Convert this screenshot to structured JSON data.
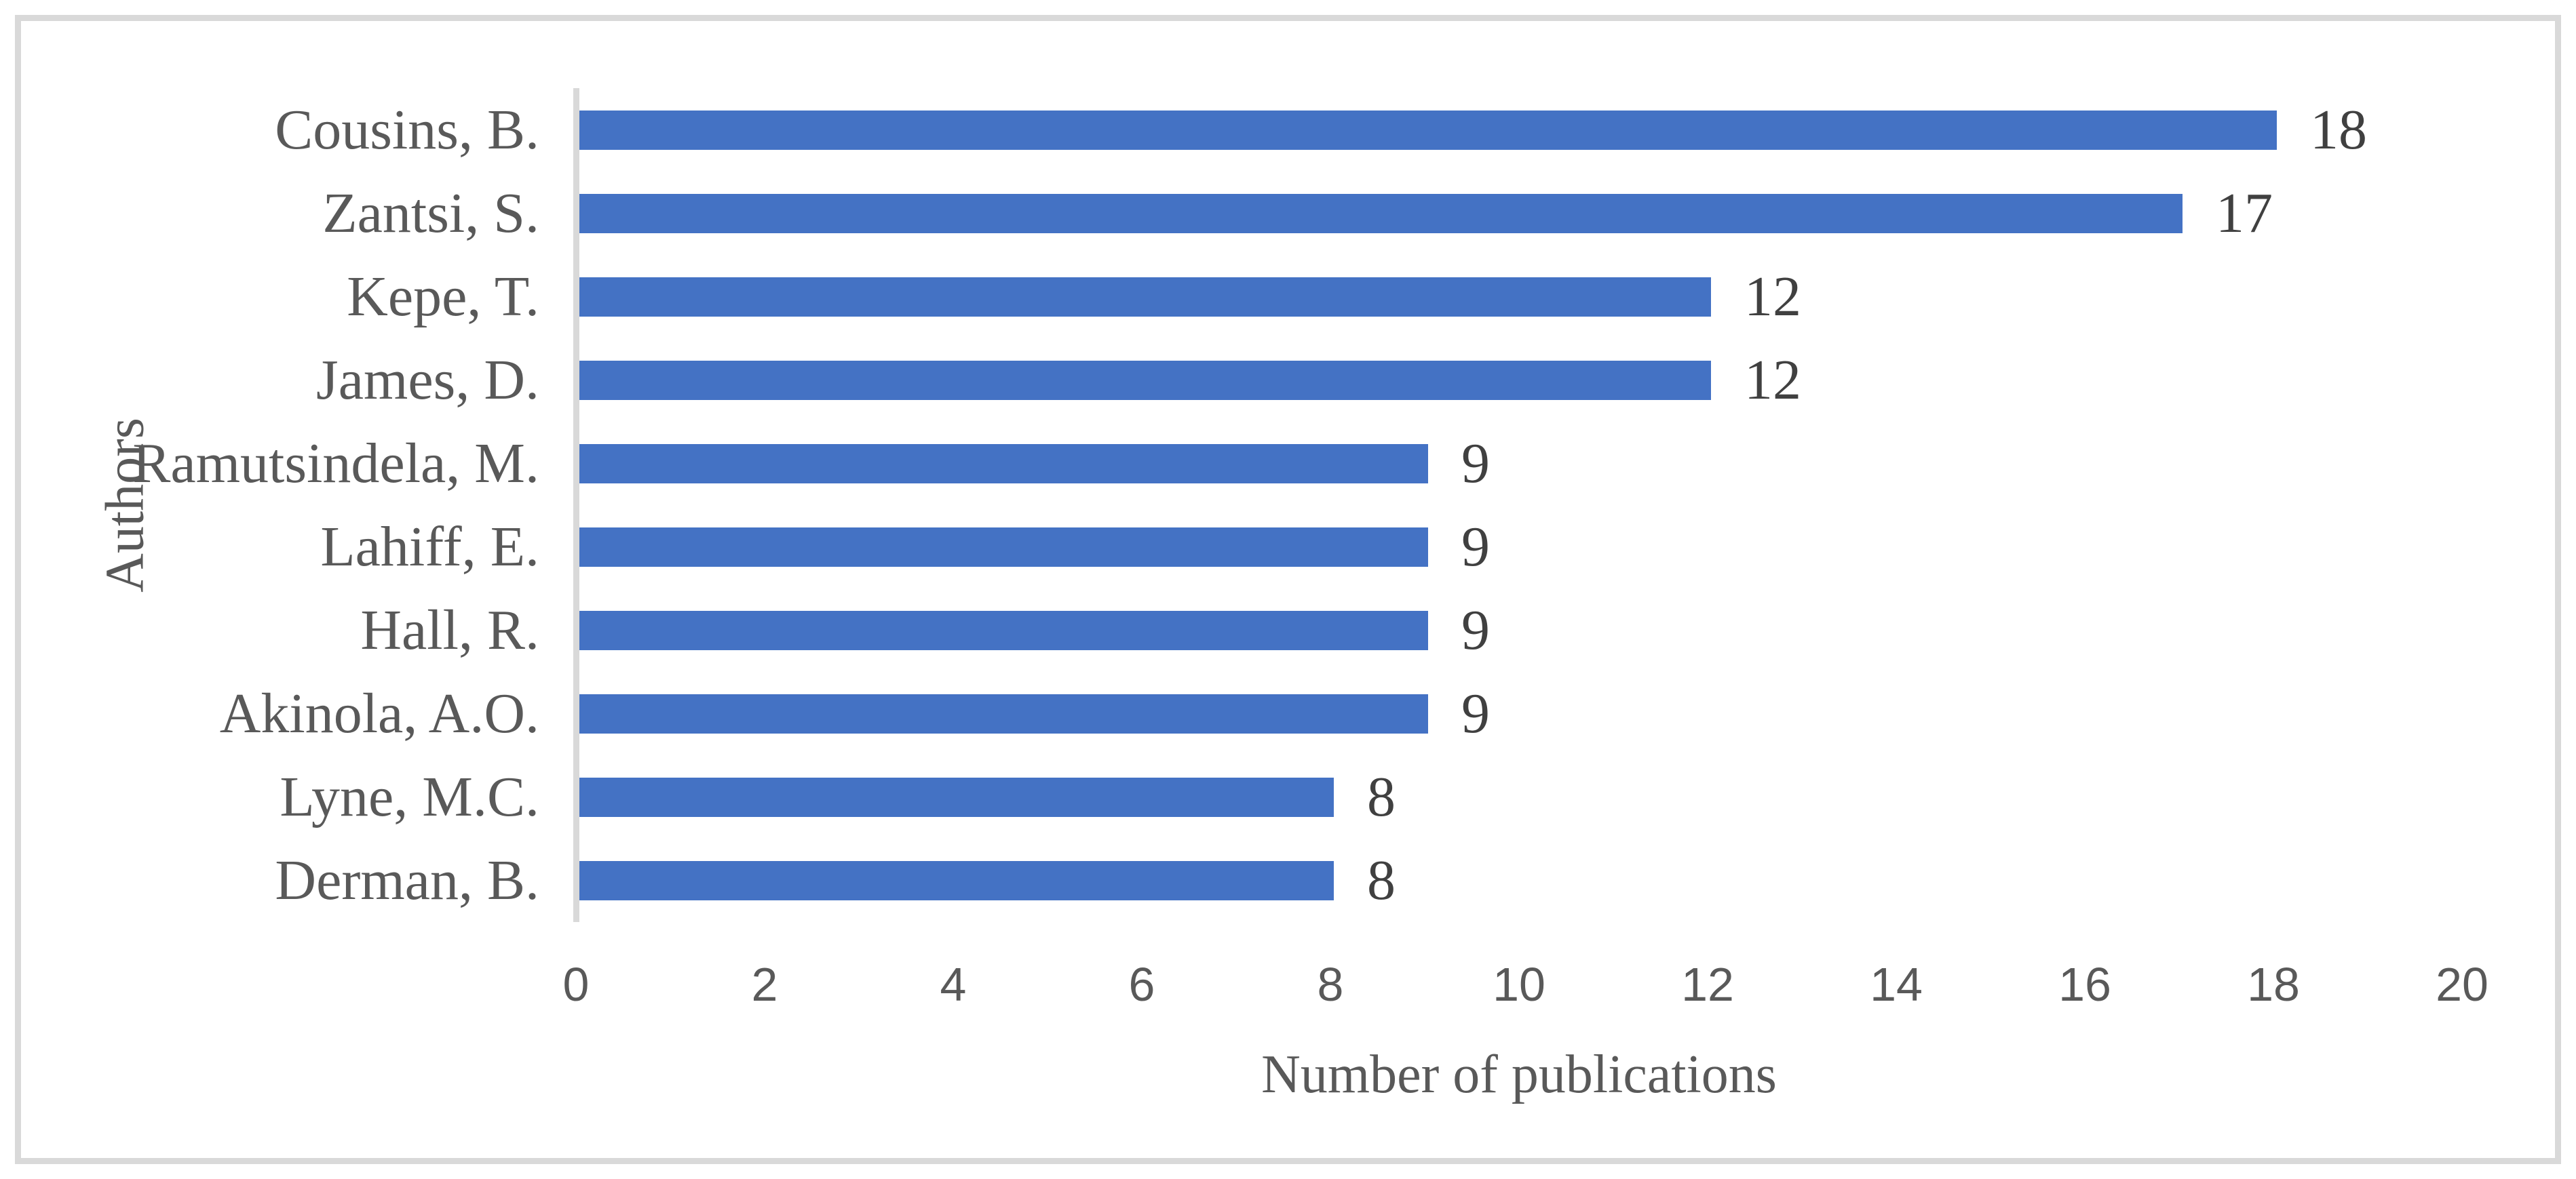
{
  "chart_data": {
    "type": "bar",
    "orientation": "horizontal",
    "categories": [
      "Cousins, B.",
      "Zantsi, S.",
      "Kepe, T.",
      "James, D.",
      "Ramutsindela, M.",
      "Lahiff, E.",
      "Hall, R.",
      "Akinola, A.O.",
      "Lyne, M.C.",
      "Derman, B."
    ],
    "values": [
      18,
      17,
      12,
      12,
      9,
      9,
      9,
      9,
      8,
      8
    ],
    "data_labels": [
      "18",
      "17",
      "12",
      "12",
      "9",
      "9",
      "9",
      "9",
      "8",
      "8"
    ],
    "title": "",
    "xlabel": "Number of publications",
    "ylabel": "Authors",
    "xlim": [
      0,
      20
    ],
    "xticks": [
      "0",
      "2",
      "4",
      "6",
      "8",
      "10",
      "12",
      "14",
      "16",
      "18",
      "20"
    ],
    "grid": "off",
    "legend": "none",
    "colors": {
      "bar": "#4472C4",
      "axis_line": "#D9D9D9",
      "frame_border": "#D9D9D9",
      "tick_text": "#595959",
      "category_text": "#595959",
      "data_label_text": "#404040",
      "axis_title_text": "#595959",
      "background": "#FFFFFF"
    }
  }
}
